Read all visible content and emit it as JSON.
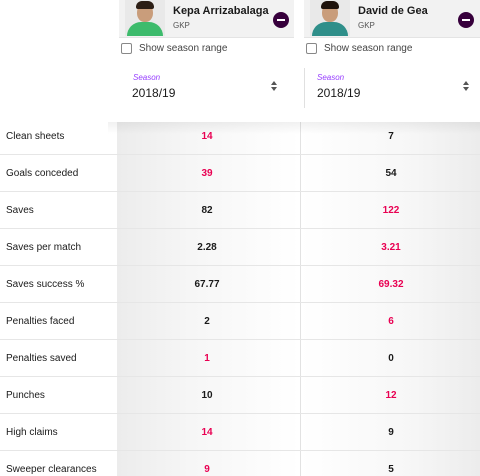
{
  "players": [
    {
      "name": "Kepa Arrizabalaga",
      "position": "GKP",
      "avatar_icon": "player-photo-kepa",
      "season_range_label": "Show season range",
      "season_label": "Season",
      "season_value": "2018/19"
    },
    {
      "name": "David de Gea",
      "position": "GKP",
      "avatar_icon": "player-photo-de-gea",
      "season_range_label": "Show season range",
      "season_label": "Season",
      "season_value": "2018/19"
    }
  ],
  "colors": {
    "highlight": "#e90052",
    "accent": "#963cff",
    "remove_button": "#37003c"
  },
  "stats": [
    {
      "label": "Clean sheets",
      "left": "14",
      "right": "7",
      "best": "left"
    },
    {
      "label": "Goals conceded",
      "left": "39",
      "right": "54",
      "best": "left"
    },
    {
      "label": "Saves",
      "left": "82",
      "right": "122",
      "best": "right"
    },
    {
      "label": "Saves per match",
      "left": "2.28",
      "right": "3.21",
      "best": "right"
    },
    {
      "label": "Saves success %",
      "left": "67.77",
      "right": "69.32",
      "best": "right"
    },
    {
      "label": "Penalties faced",
      "left": "2",
      "right": "6",
      "best": "right"
    },
    {
      "label": "Penalties saved",
      "left": "1",
      "right": "0",
      "best": "left"
    },
    {
      "label": "Punches",
      "left": "10",
      "right": "12",
      "best": "right"
    },
    {
      "label": "High claims",
      "left": "14",
      "right": "9",
      "best": "left"
    },
    {
      "label": "Sweeper clearances",
      "left": "9",
      "right": "5",
      "best": "left"
    }
  ]
}
